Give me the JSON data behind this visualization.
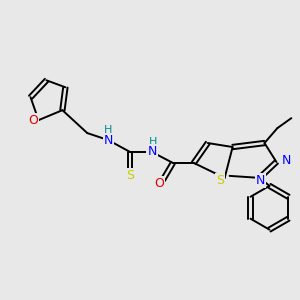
{
  "bg_color": "#e8e8e8",
  "fig_size": [
    3.0,
    3.0
  ],
  "dpi": 100,
  "bond_color": "#000000",
  "bond_lw": 1.4,
  "dbo": 0.022,
  "colors": {
    "N": "#0000ff",
    "O": "#dd0000",
    "S": "#cccc00",
    "H": "#008b8b",
    "C": "#000000"
  }
}
